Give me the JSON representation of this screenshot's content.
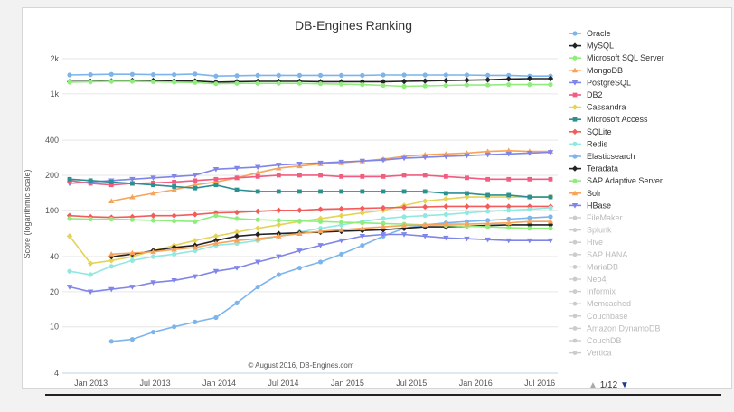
{
  "chart_data": {
    "type": "line",
    "title": "DB-Engines Ranking",
    "ylabel": "Score (logarithmic scale)",
    "xlabel": "",
    "y_scale": "log",
    "ylim": [
      4,
      2000
    ],
    "y_ticks": [
      4,
      10,
      20,
      40,
      100,
      200,
      400,
      1000,
      2000
    ],
    "y_tick_labels": [
      "4",
      "10",
      "20",
      "40",
      "100",
      "200",
      "400",
      "1k",
      "2k"
    ],
    "x_tick_labels": [
      "Jan 2013",
      "Jul 2013",
      "Jan 2014",
      "Jul 2014",
      "Jan 2015",
      "Jul 2015",
      "Jan 2016",
      "Jul 2016"
    ],
    "x": [
      "2012-11",
      "2013-01",
      "2013-03",
      "2013-05",
      "2013-07",
      "2013-09",
      "2013-11",
      "2014-01",
      "2014-03",
      "2014-05",
      "2014-07",
      "2014-09",
      "2014-11",
      "2015-01",
      "2015-03",
      "2015-05",
      "2015-07",
      "2015-09",
      "2015-11",
      "2016-01",
      "2016-03",
      "2016-05",
      "2016-07",
      "2016-08"
    ],
    "credit": "© August 2016, DB-Engines.com",
    "legend_position": "right",
    "grid": true,
    "series": [
      {
        "name": "Oracle",
        "color": "#7cb5ec",
        "marker": "circle",
        "values": [
          1450,
          1460,
          1470,
          1470,
          1460,
          1460,
          1480,
          1420,
          1430,
          1440,
          1440,
          1440,
          1440,
          1440,
          1440,
          1450,
          1450,
          1450,
          1450,
          1450,
          1440,
          1440,
          1420,
          1420
        ]
      },
      {
        "name": "MySQL",
        "color": "#222222",
        "marker": "diamond",
        "values": [
          1270,
          1280,
          1290,
          1300,
          1300,
          1290,
          1290,
          1260,
          1270,
          1280,
          1280,
          1280,
          1270,
          1270,
          1270,
          1270,
          1280,
          1290,
          1300,
          1310,
          1320,
          1340,
          1350,
          1350
        ]
      },
      {
        "name": "Microsoft SQL Server",
        "color": "#90ed7d",
        "marker": "circle",
        "values": [
          1260,
          1270,
          1280,
          1280,
          1270,
          1260,
          1250,
          1220,
          1230,
          1230,
          1230,
          1230,
          1220,
          1210,
          1200,
          1180,
          1160,
          1170,
          1180,
          1190,
          1190,
          1200,
          1200,
          1200
        ]
      },
      {
        "name": "MongoDB",
        "color": "#f7a35c",
        "marker": "triangle",
        "values": [
          null,
          null,
          120,
          130,
          140,
          150,
          165,
          175,
          190,
          210,
          230,
          240,
          250,
          255,
          265,
          275,
          290,
          300,
          305,
          310,
          320,
          325,
          320,
          320
        ]
      },
      {
        "name": "PostgreSQL",
        "color": "#8085e9",
        "marker": "triangle-down",
        "values": [
          170,
          175,
          180,
          185,
          190,
          195,
          200,
          225,
          230,
          235,
          245,
          250,
          255,
          260,
          265,
          270,
          280,
          285,
          290,
          295,
          300,
          305,
          310,
          315
        ]
      },
      {
        "name": "DB2",
        "color": "#f15c80",
        "marker": "square",
        "values": [
          180,
          170,
          165,
          170,
          172,
          175,
          180,
          185,
          190,
          195,
          200,
          200,
          200,
          195,
          195,
          195,
          200,
          200,
          195,
          190,
          185,
          185,
          185,
          185
        ]
      },
      {
        "name": "Cassandra",
        "color": "#e4d354",
        "marker": "diamond",
        "values": [
          60,
          35,
          37,
          40,
          45,
          50,
          55,
          60,
          65,
          70,
          75,
          80,
          85,
          90,
          95,
          100,
          110,
          120,
          125,
          130,
          130,
          130,
          130,
          130
        ]
      },
      {
        "name": "Microsoft Access",
        "color": "#2b908f",
        "marker": "square",
        "values": [
          185,
          180,
          175,
          170,
          165,
          160,
          155,
          165,
          150,
          145,
          145,
          145,
          145,
          145,
          145,
          145,
          145,
          145,
          140,
          140,
          135,
          135,
          130,
          130
        ]
      },
      {
        "name": "SQLite",
        "color": "#f45b5b",
        "marker": "diamond",
        "values": [
          90,
          88,
          87,
          88,
          90,
          90,
          92,
          95,
          96,
          98,
          100,
          100,
          102,
          103,
          104,
          105,
          106,
          107,
          108,
          108,
          108,
          108,
          108,
          108
        ]
      },
      {
        "name": "Redis",
        "color": "#91e8e1",
        "marker": "circle",
        "values": [
          30,
          28,
          33,
          37,
          40,
          42,
          45,
          50,
          52,
          55,
          60,
          65,
          70,
          75,
          80,
          85,
          88,
          90,
          92,
          95,
          98,
          100,
          102,
          105
        ]
      },
      {
        "name": "Elasticsearch",
        "color": "#7cb5ec",
        "marker": "circle",
        "values": [
          null,
          null,
          7.5,
          7.8,
          9,
          10,
          11,
          12,
          16,
          22,
          28,
          32,
          36,
          42,
          50,
          60,
          70,
          75,
          78,
          80,
          82,
          84,
          86,
          88
        ]
      },
      {
        "name": "Teradata",
        "color": "#222222",
        "marker": "diamond",
        "values": [
          null,
          null,
          40,
          42,
          45,
          48,
          50,
          55,
          60,
          62,
          63,
          64,
          65,
          66,
          67,
          68,
          70,
          72,
          72,
          73,
          74,
          75,
          75,
          75
        ]
      },
      {
        "name": "SAP Adaptive Server",
        "color": "#90ed7d",
        "marker": "circle",
        "values": [
          85,
          84,
          84,
          83,
          82,
          81,
          80,
          90,
          85,
          83,
          82,
          81,
          80,
          79,
          78,
          77,
          76,
          75,
          74,
          73,
          72,
          71,
          70,
          70
        ]
      },
      {
        "name": "Solr",
        "color": "#f7a35c",
        "marker": "triangle",
        "values": [
          null,
          null,
          42,
          43,
          44,
          46,
          48,
          52,
          55,
          57,
          60,
          63,
          66,
          68,
          70,
          72,
          74,
          75,
          76,
          76,
          77,
          78,
          80,
          80
        ]
      },
      {
        "name": "HBase",
        "color": "#8085e9",
        "marker": "triangle-down",
        "values": [
          22,
          20,
          21,
          22,
          24,
          25,
          27,
          30,
          32,
          36,
          40,
          45,
          50,
          55,
          60,
          62,
          62,
          60,
          58,
          57,
          56,
          55,
          55,
          55
        ]
      }
    ],
    "hidden_series": [
      "FileMaker",
      "Splunk",
      "Hive",
      "SAP HANA",
      "MariaDB",
      "Neo4j",
      "Informix",
      "Memcached",
      "Couchbase",
      "Amazon DynamoDB",
      "CouchDB",
      "Vertica"
    ],
    "hidden_color": "#cccccc"
  },
  "legend_pager": {
    "up": "▲",
    "text": "1/12",
    "down": "▼"
  }
}
